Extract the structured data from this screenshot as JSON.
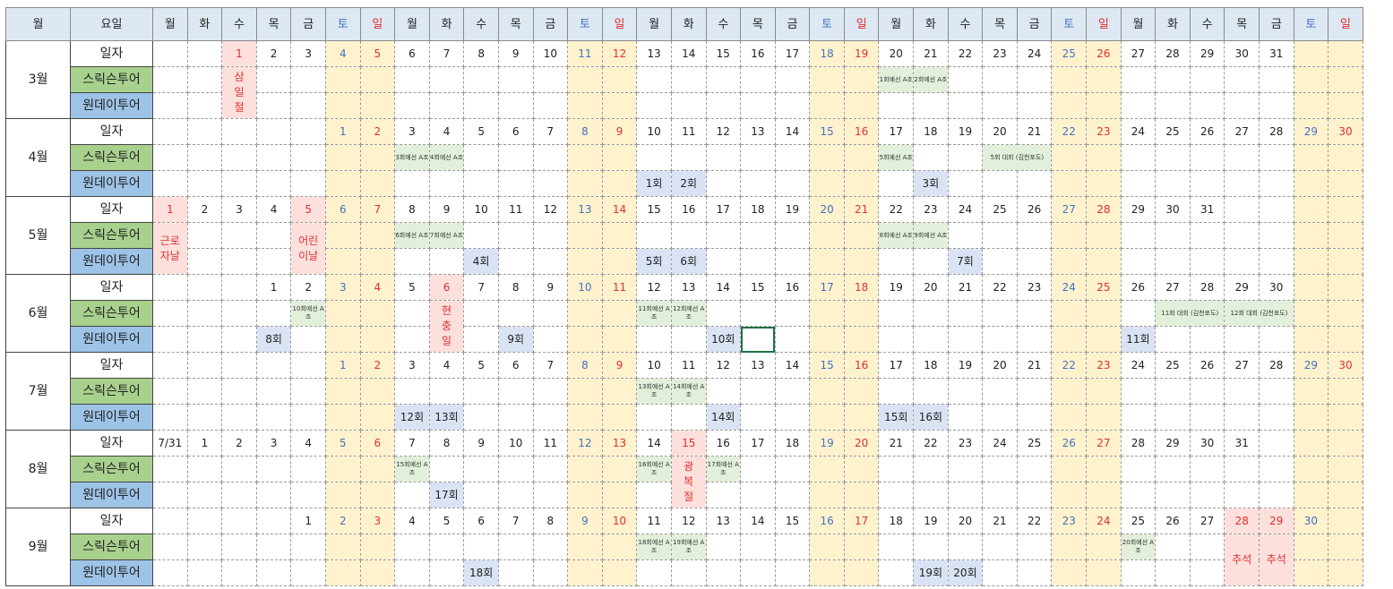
{
  "header": {
    "month_label": "월",
    "weekday_label": "요일",
    "weekdays": [
      "월",
      "화",
      "수",
      "목",
      "금",
      "토",
      "일",
      "월",
      "화",
      "수",
      "목",
      "금",
      "토",
      "일",
      "월",
      "화",
      "수",
      "목",
      "금",
      "토",
      "일",
      "월",
      "화",
      "수",
      "목",
      "금",
      "토",
      "일",
      "월",
      "화",
      "수",
      "목",
      "금",
      "토",
      "일"
    ]
  },
  "labels": {
    "date_row": "일자",
    "swiss": "스릭슨투어",
    "oneday": "원데이투어"
  },
  "months": [
    {
      "name": "3월",
      "start": 2,
      "days": [
        "1",
        "2",
        "3",
        "4",
        "5",
        "6",
        "7",
        "8",
        "9",
        "10",
        "11",
        "12",
        "13",
        "14",
        "15",
        "16",
        "17",
        "18",
        "19",
        "20",
        "21",
        "22",
        "23",
        "24",
        "25",
        "26",
        "27",
        "28",
        "29",
        "30",
        "31"
      ],
      "holidays": [
        {
          "col": 2,
          "text": "삼일절"
        }
      ],
      "swiss": [
        {
          "col": 21,
          "text": "1회예선 A조"
        },
        {
          "col": 22,
          "text": "2회예선 A조"
        }
      ],
      "oneday": []
    },
    {
      "name": "4월",
      "start": 5,
      "days": [
        "1",
        "2",
        "3",
        "4",
        "5",
        "6",
        "7",
        "8",
        "9",
        "10",
        "11",
        "12",
        "13",
        "14",
        "15",
        "16",
        "17",
        "18",
        "19",
        "20",
        "21",
        "22",
        "23",
        "24",
        "25",
        "26",
        "27",
        "28",
        "29",
        "30"
      ],
      "holidays": [],
      "swiss": [
        {
          "col": 7,
          "text": "3회예선 A조"
        },
        {
          "col": 8,
          "text": "4회예선 A조"
        },
        {
          "col": 21,
          "text": "5회예선 A조"
        },
        {
          "col": 24,
          "span": 2,
          "text": "5회 대회 (김천포도)"
        }
      ],
      "oneday": [
        {
          "col": 14,
          "text": "1회"
        },
        {
          "col": 15,
          "text": "2회"
        },
        {
          "col": 22,
          "text": "3회"
        }
      ]
    },
    {
      "name": "5월",
      "start": 0,
      "days": [
        "1",
        "2",
        "3",
        "4",
        "5",
        "6",
        "7",
        "8",
        "9",
        "10",
        "11",
        "12",
        "13",
        "14",
        "15",
        "16",
        "17",
        "18",
        "19",
        "20",
        "21",
        "22",
        "23",
        "24",
        "25",
        "26",
        "27",
        "28",
        "29",
        "30",
        "31"
      ],
      "holidays": [
        {
          "col": 0,
          "text": "근로자날"
        },
        {
          "col": 4,
          "text": "어린이날"
        }
      ],
      "swiss": [
        {
          "col": 7,
          "text": "6회예선 A조"
        },
        {
          "col": 8,
          "text": "7회예선 A조"
        },
        {
          "col": 21,
          "text": "8회예선 A조"
        },
        {
          "col": 22,
          "text": "9회예선 A조"
        }
      ],
      "oneday": [
        {
          "col": 9,
          "text": "4회"
        },
        {
          "col": 14,
          "text": "5회"
        },
        {
          "col": 15,
          "text": "6회"
        },
        {
          "col": 23,
          "text": "7회"
        }
      ]
    },
    {
      "name": "6월",
      "start": 3,
      "days": [
        "1",
        "2",
        "3",
        "4",
        "5",
        "6",
        "7",
        "8",
        "9",
        "10",
        "11",
        "12",
        "13",
        "14",
        "15",
        "16",
        "17",
        "18",
        "19",
        "20",
        "21",
        "22",
        "23",
        "24",
        "25",
        "26",
        "27",
        "28",
        "29",
        "30"
      ],
      "holidays": [
        {
          "col": 8,
          "text": "현충일"
        }
      ],
      "swiss": [
        {
          "col": 4,
          "text": "10회예선 A조"
        },
        {
          "col": 14,
          "text": "11회예선 A조"
        },
        {
          "col": 15,
          "text": "12회예선 A조"
        },
        {
          "col": 29,
          "span": 2,
          "text": "11회 대회 (김천포도)"
        },
        {
          "col": 31,
          "span": 2,
          "text": "12회 대회 (김천포도)"
        }
      ],
      "oneday": [
        {
          "col": 3,
          "text": "8회"
        },
        {
          "col": 10,
          "text": "9회"
        },
        {
          "col": 16,
          "text": "10회"
        },
        {
          "col": 28,
          "text": "11회"
        }
      ]
    },
    {
      "name": "7월",
      "start": 5,
      "days": [
        "1",
        "2",
        "3",
        "4",
        "5",
        "6",
        "7",
        "8",
        "9",
        "10",
        "11",
        "12",
        "13",
        "14",
        "15",
        "16",
        "17",
        "18",
        "19",
        "20",
        "21",
        "22",
        "23",
        "24",
        "25",
        "26",
        "27",
        "28",
        "29",
        "30"
      ],
      "holidays": [],
      "swiss": [
        {
          "col": 14,
          "text": "13회예선 A조"
        },
        {
          "col": 15,
          "text": "14회예선 A조"
        }
      ],
      "oneday": [
        {
          "col": 7,
          "text": "12회"
        },
        {
          "col": 8,
          "text": "13회"
        },
        {
          "col": 16,
          "text": "14회"
        },
        {
          "col": 21,
          "text": "15회"
        },
        {
          "col": 22,
          "text": "16회"
        }
      ]
    },
    {
      "name": "8월",
      "start": 0,
      "days": [
        "7/31",
        "1",
        "2",
        "3",
        "4",
        "5",
        "6",
        "7",
        "8",
        "9",
        "10",
        "11",
        "12",
        "13",
        "14",
        "15",
        "16",
        "17",
        "18",
        "19",
        "20",
        "21",
        "22",
        "23",
        "24",
        "25",
        "26",
        "27",
        "28",
        "29",
        "30",
        "31"
      ],
      "holidays": [
        {
          "col": 15,
          "text": "광복절"
        }
      ],
      "swiss": [
        {
          "col": 7,
          "text": "15회예선 A조"
        },
        {
          "col": 14,
          "text": "16회예선 A조"
        },
        {
          "col": 16,
          "text": "17회예선 A조"
        }
      ],
      "oneday": [
        {
          "col": 8,
          "text": "17회"
        }
      ]
    },
    {
      "name": "9월",
      "start": 4,
      "days": [
        "1",
        "2",
        "3",
        "4",
        "5",
        "6",
        "7",
        "8",
        "9",
        "10",
        "11",
        "12",
        "13",
        "14",
        "15",
        "16",
        "17",
        "18",
        "19",
        "20",
        "21",
        "22",
        "23",
        "24",
        "25",
        "26",
        "27",
        "28",
        "29",
        "30"
      ],
      "holidays": [],
      "daylabel_holidays": [
        31,
        32
      ],
      "swiss": [
        {
          "col": 14,
          "text": "18회예선 A조"
        },
        {
          "col": 15,
          "text": "19회예선 A조"
        },
        {
          "col": 28,
          "text": "20회예선 A조"
        }
      ],
      "oneday": [
        {
          "col": 9,
          "text": "18회"
        },
        {
          "col": 22,
          "text": "19회"
        },
        {
          "col": 23,
          "text": "20회"
        }
      ],
      "lower_holidays": [
        {
          "col": 31,
          "text": "추석"
        },
        {
          "col": 32,
          "text": "추석"
        }
      ]
    }
  ],
  "selected_cell": {
    "month": 3,
    "row": "oneday",
    "col": 17
  }
}
